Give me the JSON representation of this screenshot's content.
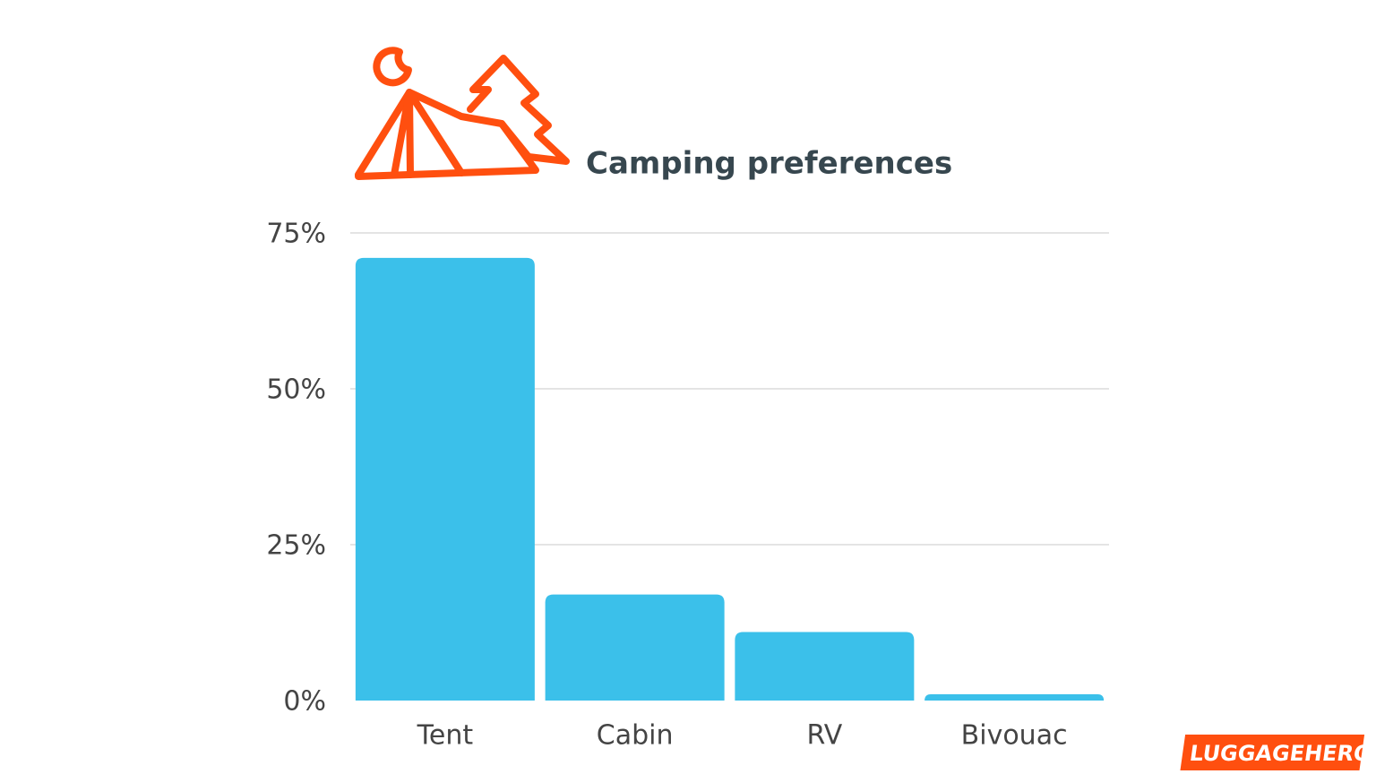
{
  "chart_data": {
    "type": "bar",
    "title": "Camping preferences",
    "categories": [
      "Tent",
      "Cabin",
      "RV",
      "Bivouac"
    ],
    "values": [
      71,
      17,
      11,
      1
    ],
    "color": "#3bc0ea",
    "ylim": [
      0,
      75
    ],
    "yticks": [
      {
        "value": 0,
        "label": "0%"
      },
      {
        "value": 25,
        "label": "25%"
      },
      {
        "value": 50,
        "label": "50%"
      },
      {
        "value": 75,
        "label": "75%"
      }
    ],
    "grid": true,
    "brand": "LUGGAGEHERO"
  }
}
